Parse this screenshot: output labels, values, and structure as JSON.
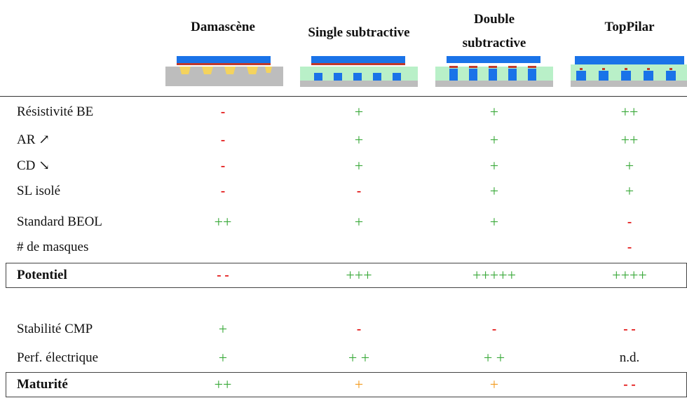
{
  "header": {
    "columns": [
      "Damascène",
      "Single subtractive",
      "Double subtractive",
      "TopPilar"
    ]
  },
  "rows": [
    {
      "label": "Résistivité BE",
      "cells": [
        "-",
        "+",
        "+",
        "++"
      ]
    },
    {
      "label": "AR ↗",
      "cells": [
        "-",
        "+",
        "+",
        "++"
      ]
    },
    {
      "label": "CD ↘",
      "cells": [
        "-",
        "+",
        "+",
        "+"
      ]
    },
    {
      "label": "SL isolé",
      "cells": [
        "-",
        "-",
        "+",
        "+"
      ]
    },
    {
      "label": "Standard BEOL",
      "cells": [
        "++",
        "+",
        "+",
        "-"
      ]
    },
    {
      "label": "# de masques",
      "cells": [
        null,
        null,
        null,
        "-"
      ]
    },
    {
      "label": "Potentiel",
      "cells": [
        "- -",
        "+++",
        "+++++",
        "++++"
      ]
    },
    {
      "label": "Stabilité CMP",
      "cells": [
        "+",
        "-",
        "-",
        "- -"
      ]
    },
    {
      "label": "Perf. électrique",
      "cells": [
        "+",
        "+ +",
        "+ +",
        "n.d."
      ]
    },
    {
      "label": "Maturité",
      "cells": [
        "++",
        "+",
        "+",
        "- -"
      ]
    }
  ]
}
